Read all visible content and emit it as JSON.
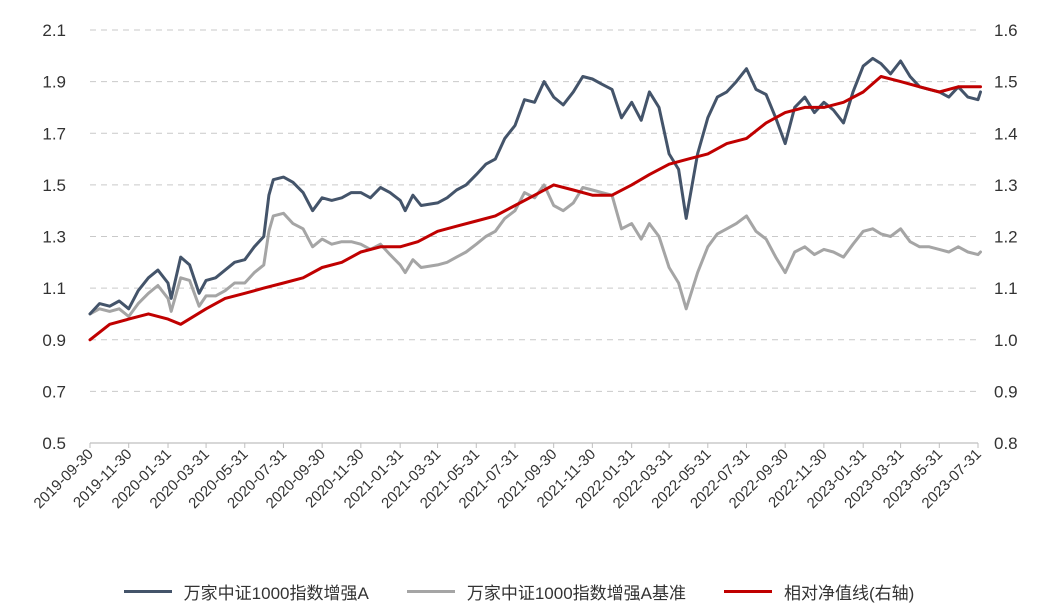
{
  "chart_data": {
    "type": "line",
    "title": "",
    "xlabel": "",
    "ylabel_left": "",
    "ylabel_right": "",
    "x_ticks": [
      "2019-09-30",
      "2019-11-30",
      "2020-01-31",
      "2020-03-31",
      "2020-05-31",
      "2020-07-31",
      "2020-09-30",
      "2020-11-30",
      "2021-01-31",
      "2021-03-31",
      "2021-05-31",
      "2021-07-31",
      "2021-09-30",
      "2021-11-30",
      "2022-01-31",
      "2022-03-31",
      "2022-05-31",
      "2022-07-31",
      "2022-09-30",
      "2022-11-30",
      "2023-01-31",
      "2023-03-31",
      "2023-05-31",
      "2023-07-31"
    ],
    "y_left": {
      "ticks": [
        "0.5",
        "0.7",
        "0.9",
        "1.1",
        "1.3",
        "1.5",
        "1.7",
        "1.9",
        "2.1"
      ],
      "min": 0.5,
      "max": 2.1
    },
    "y_right": {
      "ticks": [
        "0.8",
        "0.9",
        "1.0",
        "1.1",
        "1.2",
        "1.3",
        "1.4",
        "1.5",
        "1.6"
      ],
      "min": 0.8,
      "max": 1.6
    },
    "grid": true,
    "legend_position": "bottom",
    "series": [
      {
        "name": "万家中证1000指数增强A",
        "axis": "left",
        "color": "#44546a",
        "x": [
          "2019-09-30",
          "2019-10-15",
          "2019-10-31",
          "2019-11-15",
          "2019-11-30",
          "2019-12-15",
          "2019-12-31",
          "2020-01-15",
          "2020-01-31",
          "2020-02-05",
          "2020-02-20",
          "2020-03-05",
          "2020-03-20",
          "2020-03-31",
          "2020-04-15",
          "2020-04-30",
          "2020-05-15",
          "2020-05-31",
          "2020-06-15",
          "2020-06-30",
          "2020-07-08",
          "2020-07-15",
          "2020-07-31",
          "2020-08-15",
          "2020-08-31",
          "2020-09-15",
          "2020-09-30",
          "2020-10-15",
          "2020-10-31",
          "2020-11-15",
          "2020-11-30",
          "2020-12-15",
          "2020-12-31",
          "2021-01-15",
          "2021-01-31",
          "2021-02-08",
          "2021-02-20",
          "2021-03-05",
          "2021-03-31",
          "2021-04-15",
          "2021-04-30",
          "2021-05-15",
          "2021-05-31",
          "2021-06-15",
          "2021-06-30",
          "2021-07-15",
          "2021-07-31",
          "2021-08-15",
          "2021-08-31",
          "2021-09-15",
          "2021-09-30",
          "2021-10-15",
          "2021-10-31",
          "2021-11-15",
          "2021-11-30",
          "2021-12-15",
          "2021-12-31",
          "2022-01-15",
          "2022-01-31",
          "2022-02-15",
          "2022-02-28",
          "2022-03-15",
          "2022-03-31",
          "2022-04-15",
          "2022-04-27",
          "2022-05-15",
          "2022-05-31",
          "2022-06-15",
          "2022-06-30",
          "2022-07-15",
          "2022-07-31",
          "2022-08-15",
          "2022-08-31",
          "2022-09-15",
          "2022-09-30",
          "2022-10-15",
          "2022-10-31",
          "2022-11-15",
          "2022-11-30",
          "2022-12-15",
          "2022-12-31",
          "2023-01-15",
          "2023-01-31",
          "2023-02-15",
          "2023-02-28",
          "2023-03-15",
          "2023-03-31",
          "2023-04-15",
          "2023-04-30",
          "2023-05-15",
          "2023-05-31",
          "2023-06-15",
          "2023-06-30",
          "2023-07-15",
          "2023-07-31",
          "2023-08-04"
        ],
        "values": [
          1.0,
          1.04,
          1.03,
          1.05,
          1.02,
          1.09,
          1.14,
          1.17,
          1.12,
          1.06,
          1.22,
          1.19,
          1.08,
          1.13,
          1.14,
          1.17,
          1.2,
          1.21,
          1.26,
          1.3,
          1.46,
          1.52,
          1.53,
          1.51,
          1.47,
          1.4,
          1.45,
          1.44,
          1.45,
          1.47,
          1.47,
          1.45,
          1.49,
          1.47,
          1.44,
          1.4,
          1.46,
          1.42,
          1.43,
          1.45,
          1.48,
          1.5,
          1.54,
          1.58,
          1.6,
          1.68,
          1.73,
          1.83,
          1.82,
          1.9,
          1.84,
          1.81,
          1.86,
          1.92,
          1.91,
          1.89,
          1.87,
          1.76,
          1.82,
          1.75,
          1.86,
          1.8,
          1.62,
          1.56,
          1.37,
          1.62,
          1.76,
          1.84,
          1.86,
          1.9,
          1.95,
          1.87,
          1.85,
          1.76,
          1.66,
          1.8,
          1.84,
          1.78,
          1.82,
          1.79,
          1.74,
          1.86,
          1.96,
          1.99,
          1.97,
          1.93,
          1.98,
          1.92,
          1.88,
          1.87,
          1.86,
          1.84,
          1.88,
          1.84,
          1.83,
          1.86
        ]
      },
      {
        "name": "万家中证1000指数增强A基准",
        "axis": "left",
        "color": "#a5a5a5",
        "x": [
          "2019-09-30",
          "2019-10-15",
          "2019-10-31",
          "2019-11-15",
          "2019-11-30",
          "2019-12-15",
          "2019-12-31",
          "2020-01-15",
          "2020-01-31",
          "2020-02-05",
          "2020-02-20",
          "2020-03-05",
          "2020-03-20",
          "2020-03-31",
          "2020-04-15",
          "2020-04-30",
          "2020-05-15",
          "2020-05-31",
          "2020-06-15",
          "2020-06-30",
          "2020-07-08",
          "2020-07-15",
          "2020-07-31",
          "2020-08-15",
          "2020-08-31",
          "2020-09-15",
          "2020-09-30",
          "2020-10-15",
          "2020-10-31",
          "2020-11-15",
          "2020-11-30",
          "2020-12-15",
          "2020-12-31",
          "2021-01-15",
          "2021-01-31",
          "2021-02-08",
          "2021-02-20",
          "2021-03-05",
          "2021-03-31",
          "2021-04-15",
          "2021-04-30",
          "2021-05-15",
          "2021-05-31",
          "2021-06-15",
          "2021-06-30",
          "2021-07-15",
          "2021-07-31",
          "2021-08-15",
          "2021-08-31",
          "2021-09-15",
          "2021-09-30",
          "2021-10-15",
          "2021-10-31",
          "2021-11-15",
          "2021-11-30",
          "2021-12-15",
          "2021-12-31",
          "2022-01-15",
          "2022-01-31",
          "2022-02-15",
          "2022-02-28",
          "2022-03-15",
          "2022-03-31",
          "2022-04-15",
          "2022-04-27",
          "2022-05-15",
          "2022-05-31",
          "2022-06-15",
          "2022-06-30",
          "2022-07-15",
          "2022-07-31",
          "2022-08-15",
          "2022-08-31",
          "2022-09-15",
          "2022-09-30",
          "2022-10-15",
          "2022-10-31",
          "2022-11-15",
          "2022-11-30",
          "2022-12-15",
          "2022-12-31",
          "2023-01-15",
          "2023-01-31",
          "2023-02-15",
          "2023-02-28",
          "2023-03-15",
          "2023-03-31",
          "2023-04-15",
          "2023-04-30",
          "2023-05-15",
          "2023-05-31",
          "2023-06-15",
          "2023-06-30",
          "2023-07-15",
          "2023-07-31",
          "2023-08-04"
        ],
        "values": [
          1.0,
          1.02,
          1.01,
          1.02,
          0.99,
          1.04,
          1.08,
          1.11,
          1.06,
          1.01,
          1.14,
          1.13,
          1.03,
          1.07,
          1.07,
          1.09,
          1.12,
          1.12,
          1.16,
          1.19,
          1.32,
          1.38,
          1.39,
          1.35,
          1.33,
          1.26,
          1.29,
          1.27,
          1.28,
          1.28,
          1.27,
          1.25,
          1.27,
          1.23,
          1.19,
          1.16,
          1.21,
          1.18,
          1.19,
          1.2,
          1.22,
          1.24,
          1.27,
          1.3,
          1.32,
          1.37,
          1.4,
          1.47,
          1.45,
          1.5,
          1.42,
          1.4,
          1.43,
          1.49,
          1.48,
          1.47,
          1.46,
          1.33,
          1.35,
          1.29,
          1.35,
          1.3,
          1.18,
          1.12,
          1.02,
          1.16,
          1.26,
          1.31,
          1.33,
          1.35,
          1.38,
          1.32,
          1.29,
          1.22,
          1.16,
          1.24,
          1.26,
          1.23,
          1.25,
          1.24,
          1.22,
          1.27,
          1.32,
          1.33,
          1.31,
          1.3,
          1.33,
          1.28,
          1.26,
          1.26,
          1.25,
          1.24,
          1.26,
          1.24,
          1.23,
          1.24
        ]
      },
      {
        "name": "相对净值线(右轴)",
        "axis": "right",
        "color": "#c00000",
        "x": [
          "2019-09-30",
          "2019-10-31",
          "2019-11-30",
          "2019-12-31",
          "2020-01-31",
          "2020-02-20",
          "2020-03-31",
          "2020-04-30",
          "2020-05-31",
          "2020-06-30",
          "2020-07-31",
          "2020-08-31",
          "2020-09-30",
          "2020-10-31",
          "2020-11-30",
          "2020-12-31",
          "2021-01-31",
          "2021-02-28",
          "2021-03-31",
          "2021-04-30",
          "2021-05-31",
          "2021-06-30",
          "2021-07-31",
          "2021-08-31",
          "2021-09-30",
          "2021-10-31",
          "2021-11-30",
          "2021-12-31",
          "2022-01-31",
          "2022-02-28",
          "2022-03-31",
          "2022-04-30",
          "2022-05-31",
          "2022-06-30",
          "2022-07-31",
          "2022-08-31",
          "2022-09-30",
          "2022-10-31",
          "2022-11-30",
          "2022-12-31",
          "2023-01-31",
          "2023-02-28",
          "2023-03-31",
          "2023-04-30",
          "2023-05-31",
          "2023-06-30",
          "2023-07-31",
          "2023-08-04"
        ],
        "values": [
          1.0,
          1.03,
          1.04,
          1.05,
          1.04,
          1.03,
          1.06,
          1.08,
          1.09,
          1.1,
          1.11,
          1.12,
          1.14,
          1.15,
          1.17,
          1.18,
          1.18,
          1.19,
          1.21,
          1.22,
          1.23,
          1.24,
          1.26,
          1.28,
          1.3,
          1.29,
          1.28,
          1.28,
          1.3,
          1.32,
          1.34,
          1.35,
          1.36,
          1.38,
          1.39,
          1.42,
          1.44,
          1.45,
          1.45,
          1.46,
          1.48,
          1.51,
          1.5,
          1.49,
          1.48,
          1.49,
          1.49,
          1.49
        ]
      }
    ]
  }
}
